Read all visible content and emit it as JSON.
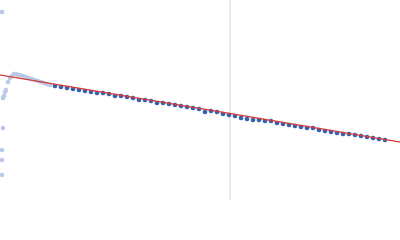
{
  "chart_data": {
    "type": "scatter",
    "xlim": [
      0,
      400
    ],
    "ylim": [
      0,
      200
    ],
    "vline_x": 230,
    "vline_color": "#c9d5ec",
    "series": [
      {
        "kind": "scatter",
        "color": "#b9c9e6",
        "x": [
          2,
          3,
          3,
          2,
          2,
          2,
          4,
          5,
          6,
          8,
          10,
          12,
          14,
          16,
          18,
          20,
          23,
          26,
          29,
          32,
          35,
          38,
          41,
          44,
          47,
          50
        ],
        "values": [
          188,
          102,
          72,
          50,
          40,
          25,
          104,
          108,
          110,
          118,
          122,
          124,
          126,
          126,
          125,
          125,
          124,
          123,
          122,
          121,
          120,
          119,
          118,
          117,
          116,
          115
        ]
      },
      {
        "kind": "scatter",
        "color": "#3462b0",
        "x": [
          55,
          61,
          67,
          73,
          79,
          85,
          91,
          97,
          103,
          109,
          115,
          121,
          127,
          133,
          139,
          145,
          151,
          157,
          163,
          169,
          175,
          181,
          187,
          193,
          199,
          205,
          211,
          217,
          223,
          229,
          235,
          241,
          247,
          253,
          259,
          265,
          271,
          277,
          283,
          289,
          295,
          301,
          307,
          313,
          319,
          325,
          331,
          337,
          343,
          349,
          355,
          361,
          367,
          373,
          379,
          385
        ],
        "values": [
          114,
          113,
          112,
          111,
          110,
          109,
          108,
          107,
          107,
          106,
          104,
          104,
          103,
          102,
          100,
          100,
          99,
          97,
          97,
          96,
          95,
          94,
          93,
          92,
          91,
          88,
          89,
          88,
          86,
          85,
          84,
          82,
          81,
          80,
          80,
          79,
          79,
          77,
          76,
          75,
          74,
          73,
          72,
          72,
          70,
          69,
          68,
          67,
          66,
          66,
          65,
          64,
          63,
          62,
          61,
          60
        ]
      },
      {
        "kind": "line",
        "color": "#d33a3a",
        "x": [
          0,
          400
        ],
        "values": [
          125,
          58
        ]
      }
    ]
  }
}
